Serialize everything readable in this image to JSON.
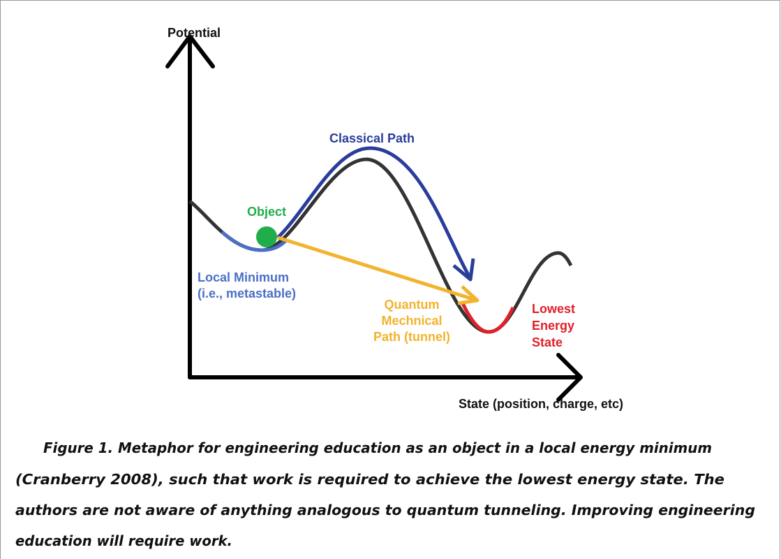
{
  "figure": {
    "y_axis_label": "Potential",
    "x_axis_label": "State (position, charge, etc)",
    "classical_path": "Classical Path",
    "object": "Object",
    "local_minimum": [
      "Local Minimum",
      "(i.e., metastable)"
    ],
    "quantum_path": [
      "Quantum",
      "Mechnical",
      "Path (tunnel)"
    ],
    "lowest_state": [
      "Lowest",
      "Energy",
      "State"
    ]
  },
  "caption": [
    "Figure 1. Metaphor for engineering education as an object in a local energy minimum",
    "(Cranberry 2008), such that work is required to achieve the lowest energy state. The",
    "authors are not aware of anything analogous to quantum tunneling. Improving engineering",
    "education will require work."
  ]
}
